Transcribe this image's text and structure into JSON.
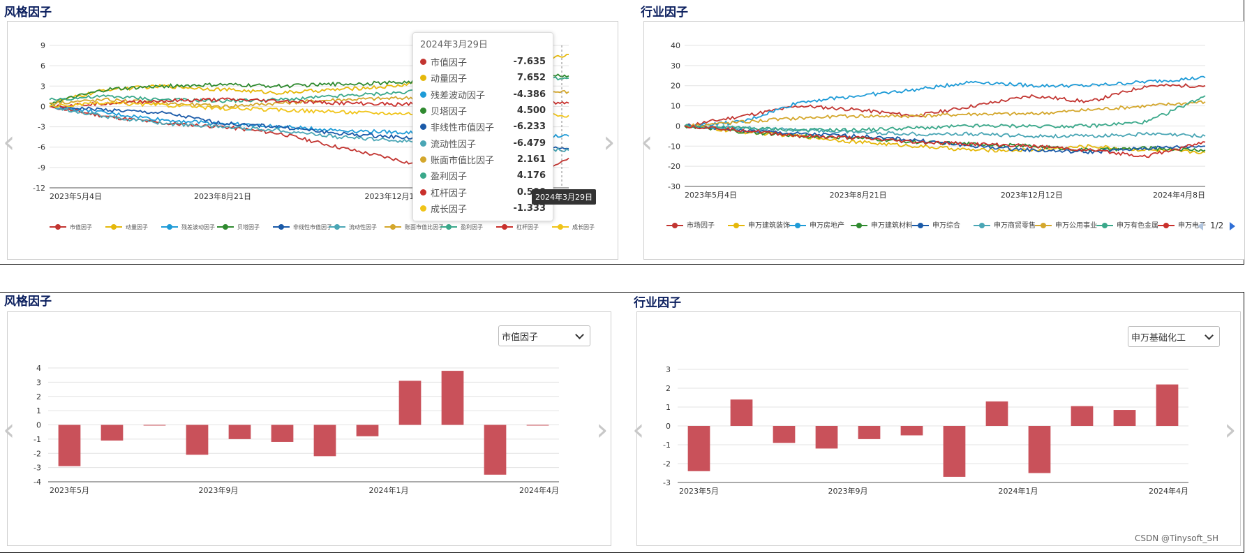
{
  "top_left": {
    "title": "风格因子",
    "tooltip_date": "2024年3月29日",
    "axis_pointer_label": "2024年3月29日",
    "tooltip_items": [
      {
        "name": "市值因子",
        "value": "-7.635"
      },
      {
        "name": "动量因子",
        "value": "7.652"
      },
      {
        "name": "残差波动因子",
        "value": "-4.386"
      },
      {
        "name": "贝塔因子",
        "value": "4.500"
      },
      {
        "name": "非线性市值因子",
        "value": "-6.233"
      },
      {
        "name": "流动性因子",
        "value": "-6.479"
      },
      {
        "name": "账面市值比因子",
        "value": "2.161"
      },
      {
        "name": "盈利因子",
        "value": "4.176"
      },
      {
        "name": "杠杆因子",
        "value": "0.500"
      },
      {
        "name": "成长因子",
        "value": "-1.333"
      }
    ]
  },
  "top_right": {
    "title": "行业因子",
    "legend_page": "1/2"
  },
  "bottom_left": {
    "title": "风格因子",
    "select_value": "市值因子"
  },
  "bottom_right": {
    "title": "行业因子",
    "select_value": "申万基础化工"
  },
  "watermark": "CSDN @Tinysoft_SH",
  "colors": {
    "series": [
      "#c23531",
      "#e5b80b",
      "#1e9bd7",
      "#2f8a2f",
      "#1a5aa8",
      "#4aa6b5",
      "#d4a72c",
      "#3aa88a",
      "#c9302c",
      "#f0c419"
    ],
    "bar": "#c9515a",
    "title": "#0b1f5e"
  },
  "chart_data": [
    {
      "type": "line",
      "title": "风格因子",
      "x_ticks": [
        "2023年5月4日",
        "2023年8月21日",
        "2023年12月12日",
        "2024年3月29日"
      ],
      "ylim": [
        -12,
        9
      ],
      "y_ticks": [
        "9",
        "6",
        "3",
        "0",
        "-3",
        "-6",
        "-9",
        "-12"
      ],
      "legend_position": "bottom",
      "series": [
        {
          "name": "市值因子",
          "values": [
            0,
            -1.5,
            -2.5,
            -3,
            -4,
            -6,
            -7.8,
            -10,
            -11,
            -7.635
          ]
        },
        {
          "name": "动量因子",
          "values": [
            0.5,
            2.5,
            3,
            2.5,
            2,
            2.5,
            3,
            4.5,
            6.5,
            7.652
          ]
        },
        {
          "name": "残差波动因子",
          "values": [
            0,
            -1,
            -2,
            -2.5,
            -3,
            -3.5,
            -3.8,
            -4,
            -4.3,
            -4.386
          ]
        },
        {
          "name": "贝塔因子",
          "values": [
            0.5,
            2.5,
            3,
            3.2,
            3,
            3.3,
            3.5,
            4,
            5,
            4.5
          ]
        },
        {
          "name": "非线性市值因子",
          "values": [
            0,
            -0.5,
            -1,
            -2.5,
            -3,
            -4,
            -4.5,
            -5,
            -5.5,
            -6.233
          ]
        },
        {
          "name": "流动性因子",
          "values": [
            0,
            -1.5,
            -2.5,
            -3,
            -3.5,
            -4.5,
            -5,
            -5.5,
            -6,
            -6.479
          ]
        },
        {
          "name": "账面市值比因子",
          "values": [
            0.5,
            1,
            0.5,
            0,
            0.5,
            1,
            1.2,
            1.5,
            2,
            2.161
          ]
        },
        {
          "name": "盈利因子",
          "values": [
            1,
            1.5,
            1,
            0.8,
            1,
            1.5,
            2,
            3,
            4,
            4.176
          ]
        },
        {
          "name": "杠杆因子",
          "values": [
            0,
            0.5,
            0.8,
            1,
            0.8,
            0.5,
            0.3,
            0.5,
            0.5,
            0.5
          ]
        },
        {
          "name": "成长因子",
          "values": [
            0,
            0.5,
            0.2,
            -0.3,
            -0.5,
            -0.8,
            -1,
            -1,
            -1.2,
            -1.333
          ]
        }
      ]
    },
    {
      "type": "line",
      "title": "行业因子",
      "x_ticks": [
        "2023年5月4日",
        "2023年8月21日",
        "2023年12月12日",
        "2024年4月8日"
      ],
      "ylim": [
        -30,
        40
      ],
      "y_ticks": [
        "40",
        "30",
        "20",
        "10",
        "0",
        "-10",
        "-20",
        "-30"
      ],
      "legend_position": "bottom",
      "series": [
        {
          "name": "市场因子",
          "values": [
            0,
            5,
            10,
            8,
            5,
            10,
            15,
            12,
            20,
            20
          ]
        },
        {
          "name": "申万建筑装饰",
          "values": [
            0,
            -3,
            -5,
            -8,
            -10,
            -12,
            -12,
            -10,
            -12,
            -13
          ]
        },
        {
          "name": "申万房地产",
          "values": [
            0,
            2,
            12,
            15,
            18,
            22,
            20,
            20,
            22,
            24
          ]
        },
        {
          "name": "申万建筑材料",
          "values": [
            0,
            -3,
            -5,
            -6,
            -8,
            -9,
            -10,
            -12,
            -11,
            -12
          ]
        },
        {
          "name": "申万综合",
          "values": [
            0,
            -2,
            -4,
            -5,
            -7,
            -10,
            -12,
            -13,
            -11,
            -10
          ]
        },
        {
          "name": "申万商贸零售",
          "values": [
            0,
            -1,
            -2,
            -3,
            -4,
            -4,
            -5,
            -5,
            -4,
            -5
          ]
        },
        {
          "name": "申万公用事业",
          "values": [
            0,
            2,
            4,
            5,
            5,
            6,
            6,
            8,
            10,
            12
          ]
        },
        {
          "name": "申万有色金属",
          "values": [
            0,
            -1,
            -2,
            -2,
            -1,
            0,
            0,
            0,
            2,
            15
          ]
        },
        {
          "name": "申万电子",
          "values": [
            0,
            -2,
            -5,
            -6,
            -8,
            -9,
            -10,
            -12,
            -15,
            -8
          ]
        }
      ]
    },
    {
      "type": "bar",
      "title": "风格因子",
      "x_ticks": [
        "2023年5月",
        "2023年9月",
        "2024年1月",
        "2024年4月"
      ],
      "ylim": [
        -4,
        4
      ],
      "y_ticks": [
        "4",
        "3",
        "2",
        "1",
        "0",
        "-1",
        "-2",
        "-3",
        "-4"
      ],
      "values": [
        -2.9,
        -1.1,
        -0.02,
        -2.1,
        -1.0,
        -1.2,
        -2.2,
        -0.8,
        3.1,
        3.8,
        -3.5,
        -0.02
      ]
    },
    {
      "type": "bar",
      "title": "行业因子",
      "x_ticks": [
        "2023年5月",
        "2023年9月",
        "2024年1月",
        "2024年4月"
      ],
      "ylim": [
        -3,
        3
      ],
      "y_ticks": [
        "3",
        "2",
        "1",
        "0",
        "-1",
        "-2",
        "-3"
      ],
      "values": [
        -2.4,
        1.4,
        -0.9,
        -1.2,
        -0.7,
        -0.5,
        -2.7,
        1.3,
        -2.5,
        1.05,
        0.85,
        2.2
      ]
    }
  ]
}
